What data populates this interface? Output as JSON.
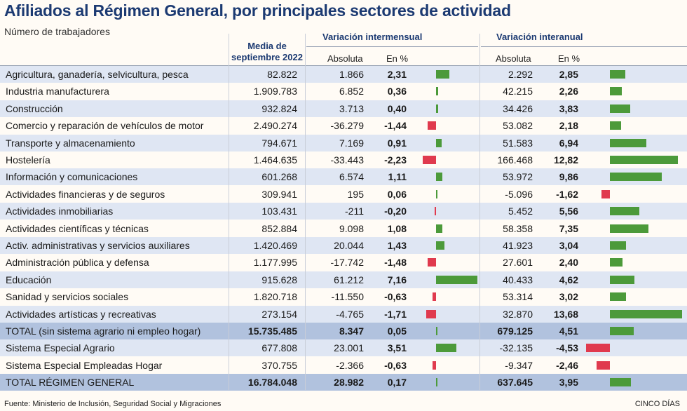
{
  "title": "Afiliados al Régimen General, por principales sectores de actividad",
  "subtitle": "Número de trabajadores",
  "headers": {
    "media_line1": "Media de",
    "media_line2": "septiembre 2022",
    "intermensual": "Variación intermensual",
    "interanual": "Variación interanual",
    "absoluta": "Absoluta",
    "en_pct": "En %"
  },
  "colors": {
    "positive": "#4c9a3a",
    "negative": "#e03a4e",
    "title": "#1c3a72"
  },
  "chart_data": {
    "type": "table",
    "title": "Afiliados al Régimen General, por principales sectores de actividad",
    "unit": "Número de trabajadores",
    "columns": [
      "Media de septiembre 2022",
      "Variación intermensual Absoluta",
      "Variación intermensual En %",
      "Variación interanual Absoluta",
      "Variación interanual En %"
    ],
    "rows": [
      {
        "label": "Agricultura, ganadería, selvicultura, pesca",
        "media": "82.822",
        "mes_abs": "1.866",
        "mes_pct": "2,31",
        "mes_val": 2.31,
        "anual_abs": "2.292",
        "anual_pct": "2,85",
        "anual_val": 2.85
      },
      {
        "label": "Industria manufacturera",
        "media": "1.909.783",
        "mes_abs": "6.852",
        "mes_pct": "0,36",
        "mes_val": 0.36,
        "anual_abs": "42.215",
        "anual_pct": "2,26",
        "anual_val": 2.26
      },
      {
        "label": "Construcción",
        "media": "932.824",
        "mes_abs": "3.713",
        "mes_pct": "0,40",
        "mes_val": 0.4,
        "anual_abs": "34.426",
        "anual_pct": "3,83",
        "anual_val": 3.83
      },
      {
        "label": "Comercio y reparación de vehículos de motor",
        "media": "2.490.274",
        "mes_abs": "-36.279",
        "mes_pct": "-1,44",
        "mes_val": -1.44,
        "anual_abs": "53.082",
        "anual_pct": "2,18",
        "anual_val": 2.18
      },
      {
        "label": "Transporte y almacenamiento",
        "media": "794.671",
        "mes_abs": "7.169",
        "mes_pct": "0,91",
        "mes_val": 0.91,
        "anual_abs": "51.583",
        "anual_pct": "6,94",
        "anual_val": 6.94
      },
      {
        "label": "Hostelería",
        "media": "1.464.635",
        "mes_abs": "-33.443",
        "mes_pct": "-2,23",
        "mes_val": -2.23,
        "anual_abs": "166.468",
        "anual_pct": "12,82",
        "anual_val": 12.82
      },
      {
        "label": "Información y comunicaciones",
        "media": "601.268",
        "mes_abs": "6.574",
        "mes_pct": "1,11",
        "mes_val": 1.11,
        "anual_abs": "53.972",
        "anual_pct": "9,86",
        "anual_val": 9.86
      },
      {
        "label": "Actividades financieras y de seguros",
        "media": "309.941",
        "mes_abs": "195",
        "mes_pct": "0,06",
        "mes_val": 0.06,
        "anual_abs": "-5.096",
        "anual_pct": "-1,62",
        "anual_val": -1.62
      },
      {
        "label": "Actividades inmobiliarias",
        "media": "103.431",
        "mes_abs": "-211",
        "mes_pct": "-0,20",
        "mes_val": -0.2,
        "anual_abs": "5.452",
        "anual_pct": "5,56",
        "anual_val": 5.56
      },
      {
        "label": "Actividades científicas y técnicas",
        "media": "852.884",
        "mes_abs": "9.098",
        "mes_pct": "1,08",
        "mes_val": 1.08,
        "anual_abs": "58.358",
        "anual_pct": "7,35",
        "anual_val": 7.35
      },
      {
        "label": "Activ. administrativas y servicios auxiliares",
        "media": "1.420.469",
        "mes_abs": "20.044",
        "mes_pct": "1,43",
        "mes_val": 1.43,
        "anual_abs": "41.923",
        "anual_pct": "3,04",
        "anual_val": 3.04
      },
      {
        "label": "Administración pública y defensa",
        "media": "1.177.995",
        "mes_abs": "-17.742",
        "mes_pct": "-1,48",
        "mes_val": -1.48,
        "anual_abs": "27.601",
        "anual_pct": "2,40",
        "anual_val": 2.4
      },
      {
        "label": "Educación",
        "media": "915.628",
        "mes_abs": "61.212",
        "mes_pct": "7,16",
        "mes_val": 7.16,
        "anual_abs": "40.433",
        "anual_pct": "4,62",
        "anual_val": 4.62
      },
      {
        "label": "Sanidad y servicios sociales",
        "media": "1.820.718",
        "mes_abs": "-11.550",
        "mes_pct": "-0,63",
        "mes_val": -0.63,
        "anual_abs": "53.314",
        "anual_pct": "3,02",
        "anual_val": 3.02
      },
      {
        "label": "Actividades artísticas y recreativas",
        "media": "273.154",
        "mes_abs": "-4.765",
        "mes_pct": "-1,71",
        "mes_val": -1.71,
        "anual_abs": "32.870",
        "anual_pct": "13,68",
        "anual_val": 13.68
      },
      {
        "label": "TOTAL (sin sistema agrario ni empleo hogar)",
        "media": "15.735.485",
        "mes_abs": "8.347",
        "mes_pct": "0,05",
        "mes_val": 0.05,
        "anual_abs": "679.125",
        "anual_pct": "4,51",
        "anual_val": 4.51,
        "total": true
      },
      {
        "label": "Sistema Especial Agrario",
        "media": "677.808",
        "mes_abs": "23.001",
        "mes_pct": "3,51",
        "mes_val": 3.51,
        "anual_abs": "-32.135",
        "anual_pct": "-4,53",
        "anual_val": -4.53
      },
      {
        "label": "Sistema Especial Empleadas Hogar",
        "media": "370.755",
        "mes_abs": "-2.366",
        "mes_pct": "-0,63",
        "mes_val": -0.63,
        "anual_abs": "-9.347",
        "anual_pct": "-2,46",
        "anual_val": -2.46
      },
      {
        "label": "TOTAL RÉGIMEN GENERAL",
        "media": "16.784.048",
        "mes_abs": "28.982",
        "mes_pct": "0,17",
        "mes_val": 0.17,
        "anual_abs": "637.645",
        "anual_pct": "3,95",
        "anual_val": 3.95,
        "total": true
      }
    ]
  },
  "footer": {
    "source": "Fuente: Ministerio de Inclusión, Seguridad Social y Migraciones",
    "brand": "CINCO DÍAS"
  }
}
